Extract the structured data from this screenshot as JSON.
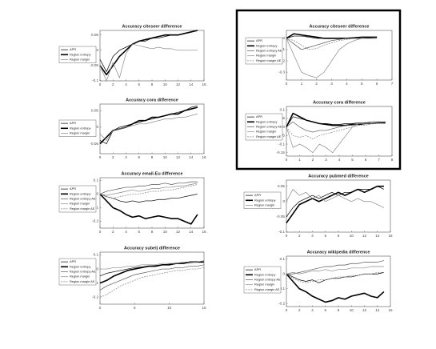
{
  "chart_data": [
    {
      "type": "line",
      "title": "Accuracy citeseer difference",
      "x": [
        0,
        1,
        2,
        3,
        4,
        5,
        6,
        7,
        8,
        9,
        10,
        11,
        12,
        13,
        14,
        15
      ],
      "xlim": [
        0,
        16
      ],
      "xticks": [
        0,
        2,
        4,
        6,
        8,
        10,
        12,
        14,
        16
      ],
      "ylim": [
        -0.1,
        0.065
      ],
      "yticks": [
        0.05,
        0,
        -0.05,
        -0.1
      ],
      "series": [
        {
          "name": "APR",
          "color": "#000000",
          "values": [
            -0.03,
            -0.07,
            -0.02,
            0.0,
            0.01,
            0.02,
            0.03,
            0.03,
            0.04,
            0.04,
            0.045,
            0.05,
            0.05,
            0.055,
            0.06,
            0.065
          ]
        },
        {
          "name": "Region entropy",
          "color": "#000000",
          "line_width": 1.6,
          "values": [
            -0.05,
            -0.08,
            -0.05,
            -0.02,
            0.0,
            0.02,
            0.03,
            0.035,
            0.04,
            0.045,
            0.05,
            0.05,
            0.05,
            0.055,
            0.06,
            0.065
          ]
        },
        {
          "name": "Region margin",
          "color": "#888888",
          "values": [
            -0.05,
            -0.1,
            -0.04,
            -0.09,
            -0.01,
            0.02,
            0.015,
            0.01,
            0.005,
            0.01,
            0.005,
            0.005,
            0.0,
            0.0,
            0.0,
            0.0
          ]
        }
      ]
    },
    {
      "type": "line",
      "title": "Accuracy cora difference",
      "x": [
        0,
        1,
        2,
        3,
        4,
        5,
        6,
        7,
        8,
        9,
        10,
        11,
        12,
        13,
        14,
        15
      ],
      "xlim": [
        0,
        16
      ],
      "xticks": [
        0,
        2,
        4,
        6,
        8,
        10,
        12,
        14,
        16
      ],
      "ylim": [
        -0.08,
        0.07
      ],
      "yticks": [
        0.05,
        0,
        -0.05
      ],
      "series": [
        {
          "name": "APR",
          "color": "#000000",
          "values": [
            -0.04,
            -0.05,
            -0.01,
            0.0,
            0.005,
            0.01,
            0.015,
            0.02,
            0.025,
            0.03,
            0.035,
            0.04,
            0.045,
            0.05,
            0.06,
            0.065
          ]
        },
        {
          "name": "Region entropy",
          "color": "#000000",
          "line_width": 1.6,
          "values": [
            -0.05,
            -0.03,
            -0.01,
            -0.005,
            0.0,
            0.01,
            0.02,
            0.02,
            0.03,
            0.03,
            0.035,
            0.04,
            0.04,
            0.05,
            0.055,
            0.06
          ]
        },
        {
          "name": "Region margin",
          "color": "#888888",
          "values": [
            -0.02,
            -0.04,
            -0.01,
            -0.005,
            0.0,
            0.005,
            0.01,
            0.01,
            0.015,
            0.02,
            0.025,
            0.025,
            0.03,
            0.03,
            0.035,
            0.04
          ]
        }
      ]
    },
    {
      "type": "line",
      "title": "Accuracy email-Eu difference",
      "x": [
        0,
        1,
        2,
        3,
        4,
        5,
        6,
        7,
        8,
        9,
        10,
        11,
        12,
        13,
        14,
        15
      ],
      "xlim": [
        0,
        16
      ],
      "xticks": [
        0,
        2,
        4,
        6,
        8,
        10,
        12,
        14,
        16
      ],
      "ylim": [
        -0.25,
        0.12
      ],
      "yticks": [
        0.1,
        0,
        -0.1,
        -0.2
      ],
      "series": [
        {
          "name": "APR",
          "color": "#000000",
          "values": [
            0.0,
            -0.02,
            -0.03,
            -0.05,
            -0.06,
            -0.05,
            -0.06,
            -0.05,
            -0.05,
            -0.04,
            -0.04,
            -0.03,
            -0.03,
            -0.02,
            -0.01,
            0.0
          ]
        },
        {
          "name": "Region entropy",
          "color": "#000000",
          "line_width": 1.6,
          "values": [
            0.0,
            -0.05,
            -0.1,
            -0.12,
            -0.15,
            -0.17,
            -0.16,
            -0.18,
            -0.17,
            -0.16,
            -0.17,
            -0.18,
            -0.18,
            -0.2,
            -0.22,
            -0.15
          ]
        },
        {
          "name": "Region entropy AE",
          "color": "#555555",
          "values": [
            0.0,
            0.02,
            0.03,
            0.04,
            0.05,
            0.05,
            0.06,
            0.06,
            0.07,
            0.07,
            0.08,
            0.07,
            0.08,
            0.08,
            0.09,
            0.09
          ]
        },
        {
          "name": "Region margin",
          "color": "#888888",
          "values": [
            0.0,
            -0.01,
            0.0,
            0.01,
            0.02,
            0.03,
            0.02,
            0.03,
            0.04,
            0.04,
            0.05,
            0.05,
            0.06,
            0.06,
            0.07,
            0.08
          ]
        },
        {
          "name": "Region margin AE",
          "color": "#888888",
          "dashed": true,
          "values": [
            0.0,
            -0.02,
            -0.03,
            -0.02,
            -0.01,
            0.0,
            0.0,
            0.01,
            0.02,
            0.02,
            0.03,
            0.03,
            0.04,
            0.05,
            0.06,
            0.07
          ]
        }
      ]
    },
    {
      "type": "line",
      "title": "Accuracy subelj difference",
      "x": [
        0,
        1,
        2,
        3,
        4,
        5,
        6,
        7,
        8,
        9,
        10,
        11,
        12,
        13,
        14,
        15
      ],
      "xlim": [
        0,
        15
      ],
      "xticks": [
        0,
        5,
        10,
        15
      ],
      "ylim": [
        -0.25,
        0.12
      ],
      "yticks": [
        0.1,
        0,
        -0.1,
        -0.2
      ],
      "series": [
        {
          "name": "APR",
          "color": "#000000",
          "values": [
            -0.05,
            -0.03,
            -0.02,
            -0.01,
            0.0,
            0.01,
            0.015,
            0.02,
            0.025,
            0.03,
            0.035,
            0.04,
            0.04,
            0.045,
            0.05,
            0.05
          ]
        },
        {
          "name": "Region entropy",
          "color": "#000000",
          "line_width": 1.6,
          "values": [
            -0.1,
            -0.08,
            -0.05,
            -0.03,
            -0.01,
            0.0,
            0.01,
            0.02,
            0.02,
            0.03,
            0.03,
            0.04,
            0.04,
            0.05,
            0.05,
            0.05
          ]
        },
        {
          "name": "Region entropy AE",
          "color": "#555555",
          "values": [
            -0.15,
            -0.12,
            -0.1,
            -0.08,
            -0.06,
            -0.04,
            -0.03,
            -0.02,
            -0.01,
            0.0,
            0.0,
            0.01,
            0.01,
            0.02,
            0.02,
            0.03
          ]
        },
        {
          "name": "Region margin",
          "color": "#888888",
          "values": [
            0.0,
            0.0,
            0.01,
            0.01,
            0.02,
            0.02,
            0.03,
            0.03,
            0.03,
            0.04,
            0.04,
            0.04,
            0.05,
            0.05,
            0.05,
            0.06
          ]
        },
        {
          "name": "Region margin AE",
          "color": "#888888",
          "dashed": true,
          "values": [
            -0.2,
            -0.18,
            -0.15,
            -0.12,
            -0.1,
            -0.08,
            -0.06,
            -0.05,
            -0.04,
            -0.03,
            -0.02,
            -0.01,
            -0.01,
            0.0,
            0.0,
            0.01
          ]
        }
      ]
    },
    {
      "type": "line",
      "title": "Accuracy citeseer difference",
      "x": [
        0,
        0.5,
        1,
        1.5,
        2,
        2.5,
        3,
        3.5,
        4,
        4.5,
        5,
        5.5,
        6
      ],
      "xlim": [
        0,
        7
      ],
      "xticks": [
        0,
        1,
        2,
        3,
        4,
        5,
        6,
        7
      ],
      "ylim": [
        -0.37,
        0.07
      ],
      "yticks": [
        0,
        -0.1,
        -0.2,
        -0.3
      ],
      "series": [
        {
          "name": "APR",
          "color": "#000000",
          "values": [
            0.0,
            0.02,
            0.02,
            0.01,
            0.0,
            0.0,
            0.0,
            0.0,
            0.0,
            0.0,
            0.0,
            0.005,
            0.01
          ]
        },
        {
          "name": "Region entropy",
          "color": "#000000",
          "line_width": 1.6,
          "values": [
            0.0,
            0.04,
            0.03,
            0.02,
            0.01,
            0.0,
            0.0,
            0.0,
            0.0,
            0.005,
            0.01,
            0.01,
            0.01
          ]
        },
        {
          "name": "Region entropy AE",
          "color": "#555555",
          "values": [
            0.0,
            -0.05,
            -0.1,
            -0.08,
            -0.06,
            -0.04,
            -0.02,
            -0.01,
            0.0,
            0.0,
            0.0,
            0.0,
            0.0
          ]
        },
        {
          "name": "Region margin",
          "color": "#888888",
          "values": [
            0.0,
            -0.15,
            -0.3,
            -0.33,
            -0.35,
            -0.3,
            -0.2,
            -0.1,
            -0.05,
            -0.02,
            0.0,
            0.0,
            0.0
          ]
        },
        {
          "name": "Region margin AE",
          "color": "#888888",
          "dashed": true,
          "values": [
            0.0,
            -0.02,
            -0.06,
            -0.1,
            -0.09,
            -0.06,
            -0.04,
            -0.02,
            -0.01,
            0.0,
            0.0,
            0.0,
            0.0
          ]
        }
      ]
    },
    {
      "type": "line",
      "title": "Accuracy cora difference",
      "x": [
        0,
        0.5,
        1,
        1.5,
        2,
        2.5,
        3,
        3.5,
        4,
        4.5,
        5,
        5.5,
        6,
        6.5,
        7,
        7.5
      ],
      "xlim": [
        0,
        8
      ],
      "xticks": [
        0,
        1,
        2,
        3,
        4,
        5,
        6,
        7,
        8
      ],
      "ylim": [
        -0.17,
        0.12
      ],
      "yticks": [
        0.1,
        0.05,
        0,
        -0.05,
        -0.1,
        -0.15
      ],
      "series": [
        {
          "name": "APR",
          "color": "#000000",
          "values": [
            0.0,
            0.06,
            0.05,
            0.04,
            0.03,
            0.02,
            0.02,
            0.015,
            0.015,
            0.02,
            0.02,
            0.025,
            0.025,
            0.03,
            0.03,
            0.03
          ]
        },
        {
          "name": "Region entropy",
          "color": "#000000",
          "line_width": 1.6,
          "values": [
            0.0,
            0.08,
            0.06,
            0.04,
            0.03,
            0.02,
            0.015,
            0.01,
            0.01,
            0.01,
            0.015,
            0.015,
            0.02,
            0.02,
            0.025,
            0.025
          ]
        },
        {
          "name": "Region entropy AE",
          "color": "#555555",
          "values": [
            0.0,
            0.03,
            0.0,
            -0.02,
            -0.03,
            -0.02,
            -0.02,
            -0.01,
            0.0,
            0.01,
            0.01,
            0.02,
            0.02,
            0.02,
            0.025,
            0.03
          ]
        },
        {
          "name": "Region margin",
          "color": "#888888",
          "values": [
            0.0,
            -0.12,
            -0.1,
            -0.12,
            -0.15,
            -0.1,
            -0.12,
            -0.15,
            -0.1,
            -0.05,
            0.0,
            0.02,
            0.02,
            0.03,
            0.03,
            0.03
          ]
        },
        {
          "name": "Region margin AE",
          "color": "#888888",
          "dashed": true,
          "values": [
            0.0,
            -0.05,
            -0.06,
            -0.05,
            -0.07,
            -0.05,
            -0.04,
            -0.03,
            -0.02,
            -0.01,
            0.0,
            0.01,
            0.01,
            0.02,
            0.02,
            0.02
          ]
        }
      ]
    },
    {
      "type": "line",
      "title": "Accuracy pubmed difference",
      "x": [
        0,
        1,
        2,
        3,
        4,
        5,
        6,
        7,
        8,
        9,
        10,
        11,
        12,
        13,
        14,
        15
      ],
      "xlim": [
        0,
        16
      ],
      "xticks": [
        0,
        2,
        4,
        6,
        8,
        10,
        12,
        14,
        16
      ],
      "ylim": [
        -0.1,
        0.07
      ],
      "yticks": [
        0.05,
        0,
        -0.05,
        -0.1
      ],
      "series": [
        {
          "name": "APR",
          "color": "#000000",
          "values": [
            -0.05,
            -0.02,
            0.0,
            0.01,
            0.02,
            0.01,
            0.02,
            0.03,
            0.02,
            0.03,
            0.03,
            0.04,
            0.04,
            0.04,
            0.05,
            0.04
          ]
        },
        {
          "name": "Region entropy",
          "color": "#000000",
          "line_width": 1.6,
          "values": [
            -0.07,
            -0.04,
            -0.01,
            0.0,
            0.01,
            0.0,
            0.01,
            0.02,
            0.03,
            0.02,
            0.03,
            0.04,
            0.03,
            0.04,
            0.05,
            0.05
          ]
        },
        {
          "name": "Region margin",
          "color": "#888888",
          "values": [
            0.0,
            0.04,
            0.02,
            0.03,
            0.01,
            0.02,
            0.0,
            0.01,
            0.02,
            0.01,
            0.0,
            0.01,
            0.0,
            0.0,
            -0.01,
            -0.02
          ]
        }
      ]
    },
    {
      "type": "line",
      "title": "Accuracy wikipedia difference",
      "x": [
        0,
        1,
        2,
        3,
        4,
        5,
        6,
        7,
        8,
        9,
        10,
        11,
        12,
        13,
        14,
        15
      ],
      "xlim": [
        0,
        16
      ],
      "xticks": [
        0,
        2,
        4,
        6,
        8,
        10,
        12,
        14,
        16
      ],
      "ylim": [
        -0.22,
        0.12
      ],
      "yticks": [
        0.1,
        0,
        -0.1,
        -0.2
      ],
      "series": [
        {
          "name": "APR",
          "color": "#000000",
          "values": [
            0.0,
            -0.02,
            -0.04,
            -0.05,
            -0.04,
            -0.06,
            -0.04,
            -0.03,
            -0.03,
            -0.02,
            -0.02,
            -0.01,
            0.0,
            0.0,
            0.0,
            0.01
          ]
        },
        {
          "name": "Region entropy",
          "color": "#000000",
          "line_width": 1.6,
          "values": [
            0.0,
            -0.05,
            -0.1,
            -0.12,
            -0.15,
            -0.17,
            -0.19,
            -0.18,
            -0.16,
            -0.17,
            -0.15,
            -0.14,
            -0.13,
            -0.15,
            -0.16,
            -0.12
          ]
        },
        {
          "name": "Region entropy AE",
          "color": "#555555",
          "values": [
            0.0,
            0.0,
            0.01,
            0.02,
            0.03,
            0.04,
            0.05,
            0.05,
            0.06,
            0.06,
            0.07,
            0.07,
            0.08,
            0.08,
            0.08,
            0.09
          ]
        },
        {
          "name": "Region margin",
          "color": "#888888",
          "values": [
            0.0,
            0.01,
            0.0,
            0.01,
            0.02,
            0.02,
            0.03,
            0.02,
            0.03,
            0.03,
            0.04,
            0.04,
            0.04,
            0.05,
            0.05,
            0.05
          ]
        },
        {
          "name": "Region margin AE",
          "color": "#888888",
          "dashed": true,
          "values": [
            0.0,
            -0.03,
            -0.05,
            -0.06,
            -0.05,
            -0.04,
            -0.04,
            -0.03,
            -0.02,
            -0.02,
            -0.01,
            -0.01,
            0.0,
            0.0,
            0.01,
            0.01
          ]
        }
      ]
    }
  ]
}
